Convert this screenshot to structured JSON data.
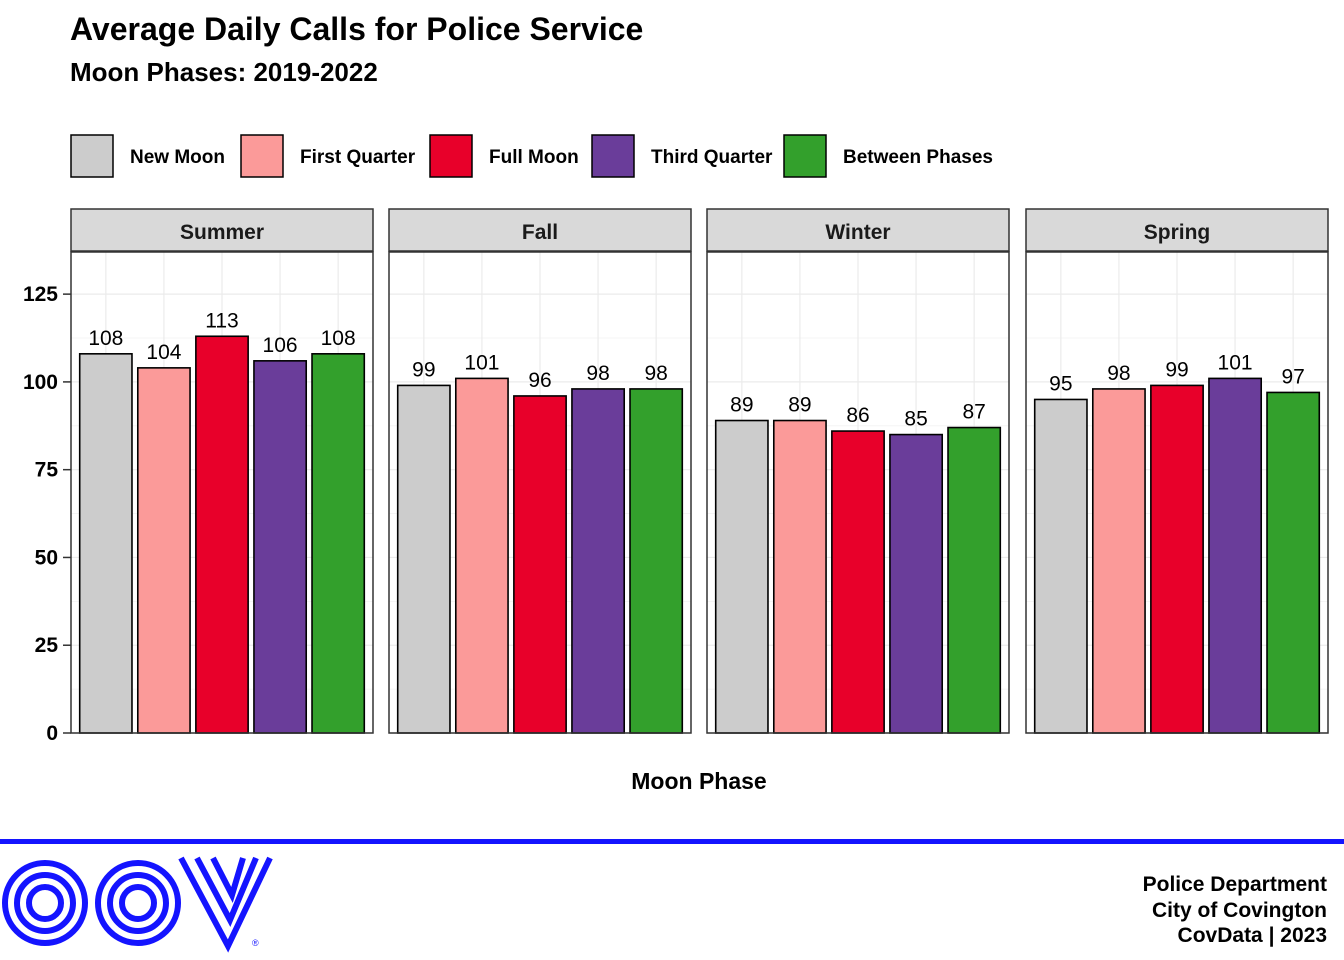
{
  "chart_data": {
    "type": "bar",
    "title": "Average Daily Calls for Police Service",
    "subtitle": "Moon Phases: 2019-2022",
    "xlabel": "Moon Phase",
    "ylabel": "",
    "ylim": [
      0,
      137
    ],
    "yticks": [
      0,
      25,
      50,
      75,
      100,
      125
    ],
    "grid": true,
    "legend_position": "top-left",
    "categories": [
      "New Moon",
      "First Quarter",
      "Full Moon",
      "Third Quarter",
      "Between Phases"
    ],
    "colors": [
      "#cccccc",
      "#fb9a99",
      "#e8002a",
      "#6a3d9a",
      "#33a02c"
    ],
    "facets": [
      {
        "name": "Summer",
        "values": [
          108,
          104,
          113,
          106,
          108
        ]
      },
      {
        "name": "Fall",
        "values": [
          99,
          101,
          96,
          98,
          98
        ]
      },
      {
        "name": "Winter",
        "values": [
          89,
          89,
          86,
          85,
          87
        ]
      },
      {
        "name": "Spring",
        "values": [
          95,
          98,
          99,
          101,
          97
        ]
      }
    ]
  },
  "footer": {
    "logo_text": "COV",
    "rule_color": "#1414ff",
    "line1": "Police Department",
    "line2": "City of Covington",
    "line3": "CovData | 2023"
  }
}
